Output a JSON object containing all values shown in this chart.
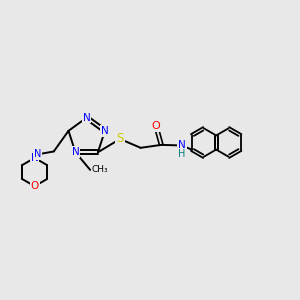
{
  "background_color": "#e8e8e8",
  "figsize": [
    3.0,
    3.0
  ],
  "dpi": 100,
  "bond_color": "#000000",
  "bond_lw": 1.4,
  "atom_colors": {
    "N": "blue",
    "S": "#cccc00",
    "O": "red",
    "NH": "blue",
    "H": "#008080"
  }
}
